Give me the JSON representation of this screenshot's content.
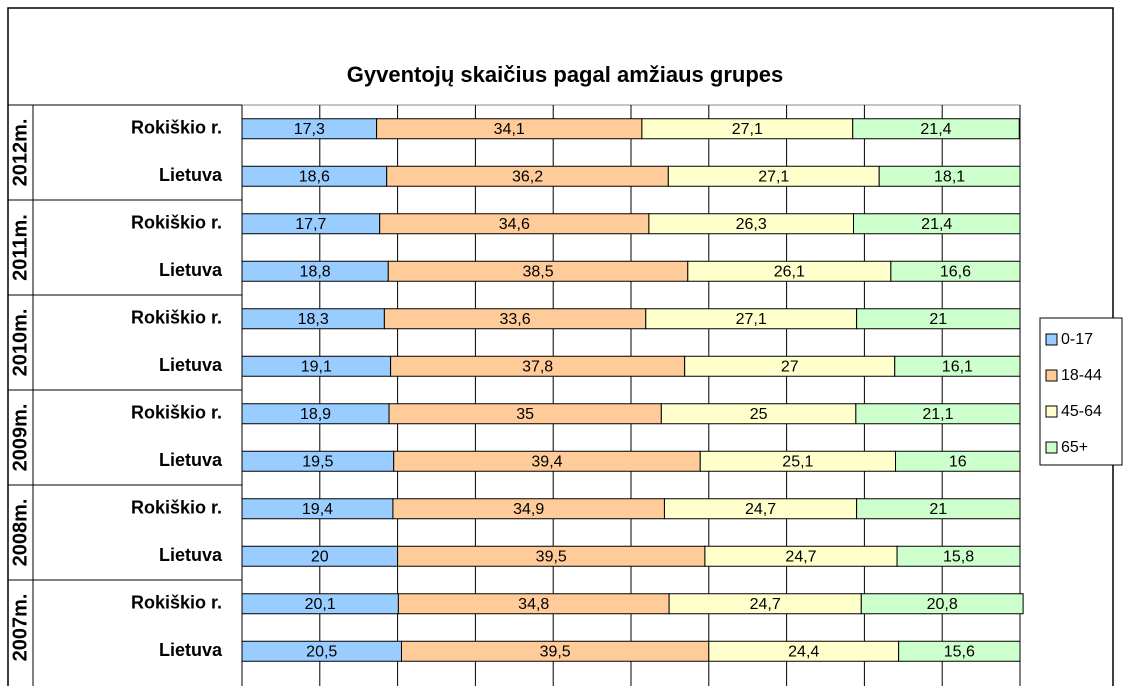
{
  "chart_data": {
    "type": "stacked_barh",
    "title": "Gyventojų skaičius pagal amžiaus grupes",
    "groups": [
      "2012m.",
      "2011m.",
      "2010m.",
      "2009m.",
      "2008m.",
      "2007m."
    ],
    "categories": [
      "Rokiškio r.",
      "Lietuva",
      "Rokiškio r.",
      "Lietuva",
      "Rokiškio r.",
      "Lietuva",
      "Rokiškio r.",
      "Lietuva",
      "Rokiškio r.",
      "Lietuva",
      "Rokiškio r.",
      "Lietuva"
    ],
    "series": [
      {
        "name": "0-17",
        "color": "#99ccff",
        "values": [
          17.3,
          18.6,
          17.7,
          18.8,
          18.3,
          19.1,
          18.9,
          19.5,
          19.4,
          20,
          20.1,
          20.5
        ],
        "value_labels": [
          "17,3",
          "18,6",
          "17,7",
          "18,8",
          "18,3",
          "19,1",
          "18,9",
          "19,5",
          "19,4",
          "20",
          "20,1",
          "20,5"
        ]
      },
      {
        "name": "18-44",
        "color": "#ffcc99",
        "values": [
          34.1,
          36.2,
          34.6,
          38.5,
          33.6,
          37.8,
          35,
          39.4,
          34.9,
          39.5,
          34.8,
          39.5
        ],
        "value_labels": [
          "34,1",
          "36,2",
          "34,6",
          "38,5",
          "33,6",
          "37,8",
          "35",
          "39,4",
          "34,9",
          "39,5",
          "34,8",
          "39,5"
        ]
      },
      {
        "name": "45-64",
        "color": "#ffffcc",
        "values": [
          27.1,
          27.1,
          26.3,
          26.1,
          27.1,
          27,
          25,
          25.1,
          24.7,
          24.7,
          24.7,
          24.4
        ],
        "value_labels": [
          "27,1",
          "27,1",
          "26,3",
          "26,1",
          "27,1",
          "27",
          "25",
          "25,1",
          "24,7",
          "24,7",
          "24,7",
          "24,4"
        ]
      },
      {
        "name": "65+",
        "color": "#ccffcc",
        "values": [
          21.4,
          18.1,
          21.4,
          16.6,
          21,
          16.1,
          21.1,
          16,
          21,
          15.8,
          20.8,
          15.6
        ],
        "value_labels": [
          "21,4",
          "18,1",
          "21,4",
          "16,6",
          "21",
          "16,1",
          "21,1",
          "16",
          "21",
          "15,8",
          "20,8",
          "15,6"
        ]
      }
    ],
    "xlim": [
      0,
      100
    ],
    "xticks": [
      0,
      10,
      20,
      30,
      40,
      50,
      60,
      70,
      80,
      90,
      100
    ],
    "grid": true,
    "legend": "right"
  }
}
